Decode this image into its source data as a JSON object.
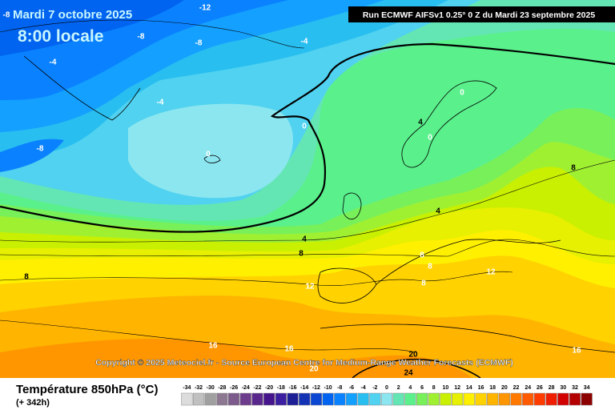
{
  "header": {
    "date": "Mardi 7 octobre 2025",
    "time": "8:00 locale",
    "run": "Run ECMWF AIFSv1 0.25° 0 Z du Mardi 23 septembre 2025",
    "copyright": "Copyright © 2025 Meteociel.fr - Source European Centre for Medium-Range Weather Forecasts (ECMWF)"
  },
  "footer": {
    "title": "Température 850hPa (°C)",
    "lead": "(+ 342h)"
  },
  "colorbar": {
    "values": [
      -34,
      -32,
      -30,
      -28,
      -26,
      -24,
      -22,
      -20,
      -18,
      -16,
      -14,
      -12,
      -10,
      -8,
      -6,
      -4,
      -2,
      0,
      2,
      4,
      6,
      8,
      10,
      12,
      14,
      16,
      18,
      20,
      22,
      24,
      26,
      28,
      30,
      32,
      34
    ],
    "colors": [
      "#dcdcdc",
      "#c0c0c0",
      "#a0a0a0",
      "#8c7890",
      "#7c5a8c",
      "#6e3c8c",
      "#5a288c",
      "#46148c",
      "#3c1ea0",
      "#1e1e96",
      "#1432b4",
      "#0a46d2",
      "#0064f0",
      "#0a82ff",
      "#14a0ff",
      "#28bef0",
      "#50d2f0",
      "#8ce6f0",
      "#64e6b4",
      "#5af08c",
      "#78f05a",
      "#a0f032",
      "#c8f000",
      "#e6f000",
      "#fff000",
      "#ffd200",
      "#ffb400",
      "#ff9600",
      "#ff7800",
      "#ff5a00",
      "#ff3c00",
      "#f01e00",
      "#d20000",
      "#b40000",
      "#8c0000"
    ]
  },
  "contour_labels": [
    -12,
    -8,
    -8,
    -8,
    -4,
    -4,
    -4,
    -8,
    0,
    0,
    0,
    0,
    4,
    4,
    4,
    8,
    8,
    8,
    8,
    8,
    8,
    12,
    12,
    16,
    16,
    16,
    20,
    20,
    24
  ]
}
